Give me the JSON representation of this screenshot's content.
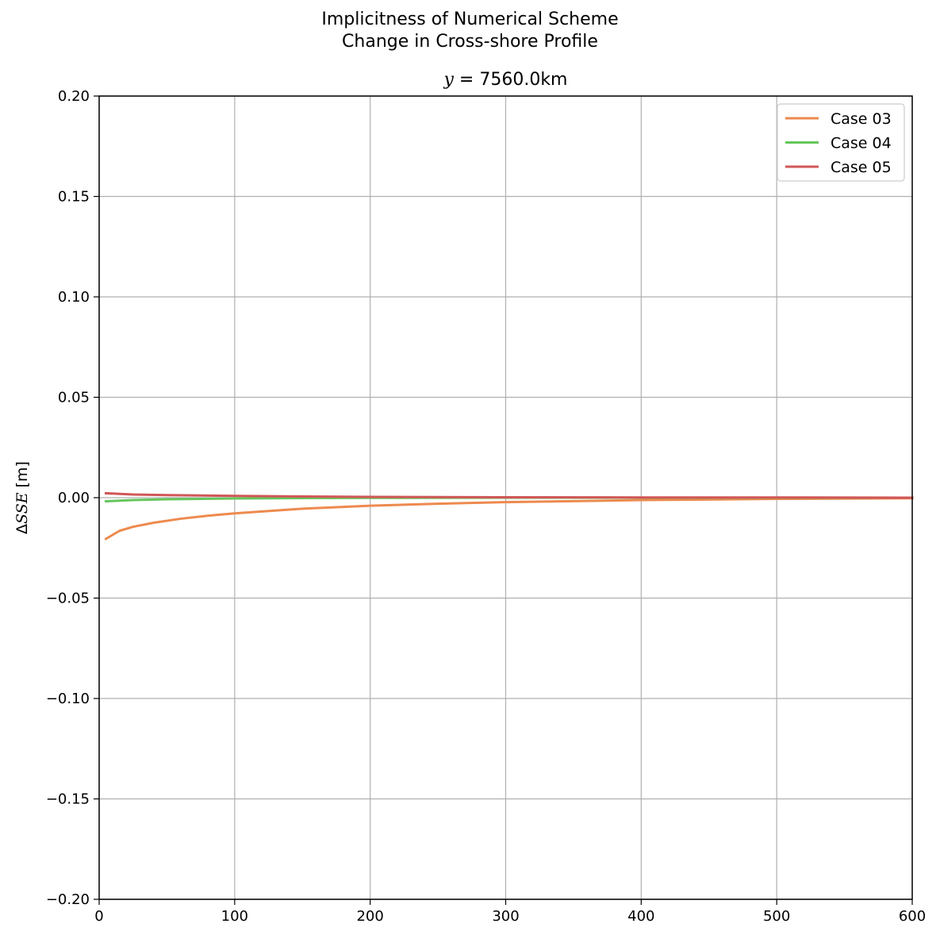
{
  "figure": {
    "suptitle_line1": "Implicitness of Numerical Scheme",
    "suptitle_line2": "Change in Cross-shore Profile",
    "axes_title_math": "y",
    "axes_title_rest": " = 7560.0km"
  },
  "chart_data": {
    "type": "line",
    "title": "y = 7560.0km",
    "xlabel": "",
    "ylabel": "ΔSSE [m]",
    "ylabel_parts": {
      "delta": "Δ",
      "italic": "SSE",
      "unit": " [m]"
    },
    "xlim": [
      0,
      600
    ],
    "ylim": [
      -0.2,
      0.2
    ],
    "xticks": [
      0,
      100,
      200,
      300,
      400,
      500,
      600
    ],
    "xtick_labels": [
      "0",
      "100",
      "200",
      "300",
      "400",
      "500",
      "600"
    ],
    "yticks": [
      0.2,
      0.15,
      0.1,
      0.05,
      0.0,
      -0.05,
      -0.1,
      -0.15,
      -0.2
    ],
    "ytick_labels": [
      "0.20",
      "0.15",
      "0.10",
      "0.05",
      "0.00",
      "−0.05",
      "−0.10",
      "−0.15",
      "−0.20"
    ],
    "grid": true,
    "legend_position": "top-right",
    "series": [
      {
        "name": "Case 03",
        "color": "#ed8a4e",
        "x": [
          5,
          15,
          25,
          40,
          60,
          80,
          100,
          150,
          200,
          250,
          300,
          400,
          500,
          600
        ],
        "y": [
          -0.0205,
          -0.0165,
          -0.0145,
          -0.0125,
          -0.0105,
          -0.009,
          -0.0078,
          -0.0055,
          -0.004,
          -0.003,
          -0.0022,
          -0.0012,
          -0.0006,
          -0.0003
        ]
      },
      {
        "name": "Case 04",
        "color": "#66c65d",
        "x": [
          5,
          25,
          50,
          100,
          150,
          200,
          300,
          400,
          500,
          600
        ],
        "y": [
          -0.0018,
          -0.0012,
          -0.0008,
          -0.0004,
          -0.0002,
          -0.0001,
          0.0,
          0.0,
          0.0,
          0.0
        ]
      },
      {
        "name": "Case 05",
        "color": "#d05757",
        "x": [
          5,
          25,
          50,
          100,
          150,
          200,
          300,
          400,
          500,
          600
        ],
        "y": [
          0.0022,
          0.0016,
          0.0013,
          0.0009,
          0.0006,
          0.0004,
          0.0002,
          0.0001,
          0.0001,
          0.0
        ]
      }
    ]
  }
}
